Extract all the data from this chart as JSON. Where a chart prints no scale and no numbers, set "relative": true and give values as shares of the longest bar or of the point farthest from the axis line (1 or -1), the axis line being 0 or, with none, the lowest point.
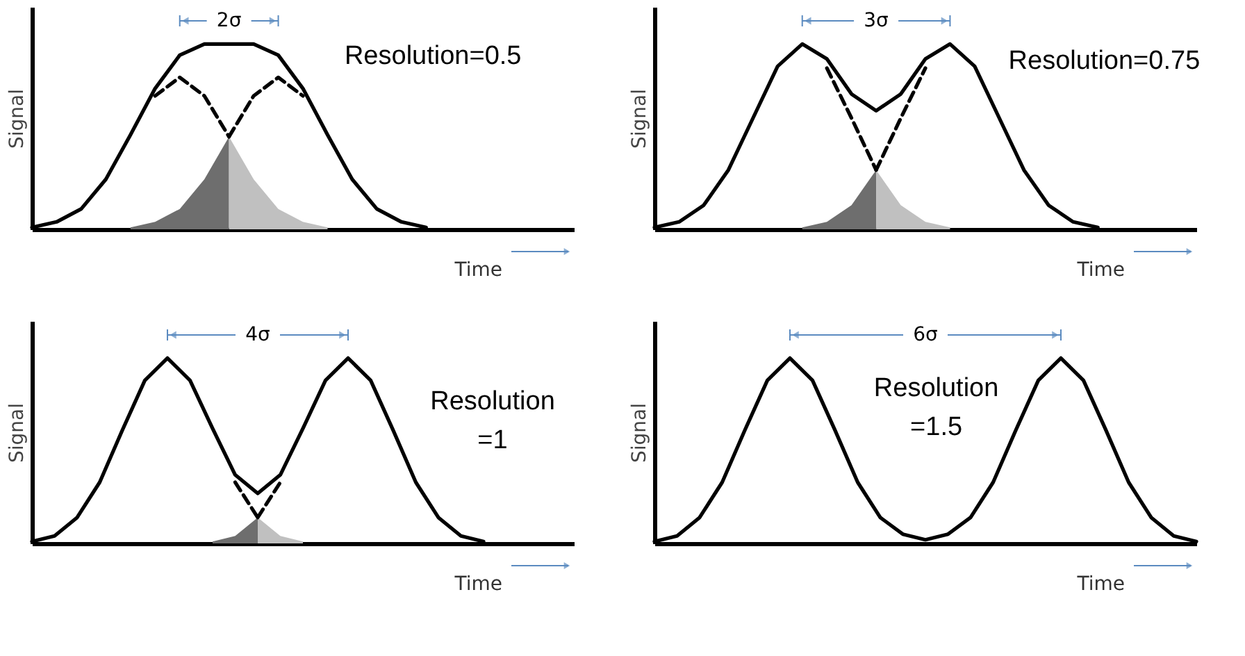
{
  "chart_data": [
    {
      "type": "line",
      "relative": true,
      "tick_labels": false,
      "xlabel": "Time",
      "ylabel": "Signal",
      "annotations": [
        "2σ",
        "Resolution=0.5"
      ],
      "categories": [
        null,
        null,
        null,
        null,
        null,
        null,
        null,
        null,
        null,
        null,
        null,
        null,
        null,
        null,
        null,
        null,
        null,
        null,
        null,
        null,
        null,
        null,
        null
      ],
      "series": [
        {
          "type": "area",
          "color": "#6e6e6e",
          "values": [
            null,
            null,
            null,
            null,
            0.01,
            0.04,
            0.11,
            0.27,
            0.5,
            null,
            null,
            null,
            null,
            null,
            null,
            null,
            null,
            null,
            null,
            null,
            null,
            null,
            null
          ]
        },
        {
          "type": "area",
          "color": "#c0c0c0",
          "values": [
            null,
            null,
            null,
            null,
            null,
            null,
            null,
            null,
            0.5,
            0.27,
            0.11,
            0.04,
            0.01,
            null,
            null,
            null,
            null,
            null,
            null,
            null,
            null,
            null,
            null
          ]
        },
        {
          "color": "#000000",
          "line_style": "dashed",
          "values": [
            null,
            null,
            null,
            null,
            null,
            0.72,
            0.82,
            0.72,
            0.5,
            null,
            null,
            null,
            null,
            null,
            null,
            null,
            null,
            null,
            null,
            null,
            null,
            null,
            null
          ]
        },
        {
          "color": "#000000",
          "line_style": "dashed",
          "values": [
            null,
            null,
            null,
            null,
            null,
            null,
            null,
            null,
            0.5,
            0.72,
            0.82,
            0.72,
            null,
            null,
            null,
            null,
            null,
            null,
            null,
            null,
            null,
            null,
            null
          ]
        },
        {
          "color": "#000000",
          "line_style": "solid",
          "values": [
            0.01,
            0.04,
            0.11,
            0.27,
            0.51,
            0.76,
            0.94,
            1.0,
            1.0,
            1.0,
            0.94,
            0.76,
            0.51,
            0.27,
            0.11,
            0.04,
            0.01,
            null,
            null,
            null,
            null,
            null,
            null
          ]
        }
      ]
    },
    {
      "type": "line",
      "relative": true,
      "tick_labels": false,
      "xlabel": "Time",
      "ylabel": "Signal",
      "annotations": [
        "3σ",
        "Resolution=0.75"
      ],
      "categories": [
        null,
        null,
        null,
        null,
        null,
        null,
        null,
        null,
        null,
        null,
        null,
        null,
        null,
        null,
        null,
        null,
        null,
        null,
        null,
        null,
        null,
        null,
        null
      ],
      "series": [
        {
          "type": "area",
          "color": "#6e6e6e",
          "values": [
            null,
            null,
            null,
            null,
            null,
            null,
            0.01,
            0.04,
            0.13,
            0.32,
            null,
            null,
            null,
            null,
            null,
            null,
            null,
            null,
            null,
            null,
            null,
            null,
            null
          ]
        },
        {
          "type": "area",
          "color": "#c0c0c0",
          "values": [
            null,
            null,
            null,
            null,
            null,
            null,
            null,
            null,
            null,
            0.32,
            0.13,
            0.04,
            0.01,
            null,
            null,
            null,
            null,
            null,
            null,
            null,
            null,
            null,
            null
          ]
        },
        {
          "color": "#000000",
          "line_style": "dashed",
          "values": [
            null,
            null,
            null,
            null,
            null,
            null,
            null,
            0.87,
            0.6,
            0.32,
            null,
            null,
            null,
            null,
            null,
            null,
            null,
            null,
            null,
            null,
            null,
            null,
            null
          ]
        },
        {
          "color": "#000000",
          "line_style": "dashed",
          "values": [
            null,
            null,
            null,
            null,
            null,
            null,
            null,
            null,
            null,
            0.32,
            0.6,
            0.87,
            null,
            null,
            null,
            null,
            null,
            null,
            null,
            null,
            null,
            null,
            null
          ]
        },
        {
          "color": "#000000",
          "line_style": "solid",
          "values": [
            0.01,
            0.04,
            0.13,
            0.32,
            0.6,
            0.88,
            1.0,
            0.92,
            0.73,
            0.64,
            0.73,
            0.92,
            1.0,
            0.88,
            0.6,
            0.32,
            0.13,
            0.04,
            0.01,
            null,
            null,
            null,
            null
          ]
        }
      ]
    },
    {
      "type": "line",
      "relative": true,
      "tick_labels": false,
      "xlabel": "Time",
      "ylabel": "Signal",
      "annotations": [
        "4σ",
        "Resolution\n=1"
      ],
      "categories": [
        null,
        null,
        null,
        null,
        null,
        null,
        null,
        null,
        null,
        null,
        null,
        null,
        null,
        null,
        null,
        null,
        null,
        null,
        null,
        null,
        null,
        null,
        null,
        null,
        null
      ],
      "series": [
        {
          "type": "area",
          "color": "#6e6e6e",
          "values": [
            null,
            null,
            null,
            null,
            null,
            null,
            null,
            null,
            0.01,
            0.04,
            0.14,
            null,
            null,
            null,
            null,
            null,
            null,
            null,
            null,
            null,
            null,
            null,
            null,
            null,
            null
          ]
        },
        {
          "type": "area",
          "color": "#c0c0c0",
          "values": [
            null,
            null,
            null,
            null,
            null,
            null,
            null,
            null,
            null,
            null,
            0.14,
            0.04,
            0.01,
            null,
            null,
            null,
            null,
            null,
            null,
            null,
            null,
            null,
            null,
            null,
            null
          ]
        },
        {
          "color": "#000000",
          "line_style": "dashed",
          "values": [
            null,
            null,
            null,
            null,
            null,
            null,
            null,
            null,
            null,
            0.33,
            0.14,
            null,
            null,
            null,
            null,
            null,
            null,
            null,
            null,
            null,
            null,
            null,
            null,
            null,
            null
          ]
        },
        {
          "color": "#000000",
          "line_style": "dashed",
          "values": [
            null,
            null,
            null,
            null,
            null,
            null,
            null,
            null,
            null,
            null,
            0.14,
            0.33,
            null,
            null,
            null,
            null,
            null,
            null,
            null,
            null,
            null,
            null,
            null,
            null,
            null
          ]
        },
        {
          "color": "#000000",
          "line_style": "solid",
          "values": [
            0.01,
            0.04,
            0.14,
            0.33,
            0.61,
            0.88,
            1.0,
            0.88,
            0.62,
            0.37,
            0.27,
            0.37,
            0.62,
            0.88,
            1.0,
            0.88,
            0.61,
            0.33,
            0.14,
            0.04,
            0.01,
            null,
            null,
            null,
            null
          ]
        }
      ]
    },
    {
      "type": "line",
      "relative": true,
      "tick_labels": false,
      "xlabel": "Time",
      "ylabel": "Signal",
      "annotations": [
        "6σ",
        "Resolution\n=1.5"
      ],
      "categories": [
        null,
        null,
        null,
        null,
        null,
        null,
        null,
        null,
        null,
        null,
        null,
        null,
        null,
        null,
        null,
        null,
        null,
        null,
        null,
        null,
        null,
        null,
        null,
        null,
        null
      ],
      "series": [
        {
          "color": "#000000",
          "line_style": "solid",
          "values": [
            0.01,
            0.04,
            0.14,
            0.33,
            0.61,
            0.88,
            1.0,
            0.88,
            0.61,
            0.33,
            0.14,
            0.05,
            0.02,
            0.05,
            0.14,
            0.33,
            0.61,
            0.88,
            1.0,
            0.88,
            0.61,
            0.33,
            0.14,
            0.04,
            0.01
          ]
        }
      ]
    }
  ]
}
